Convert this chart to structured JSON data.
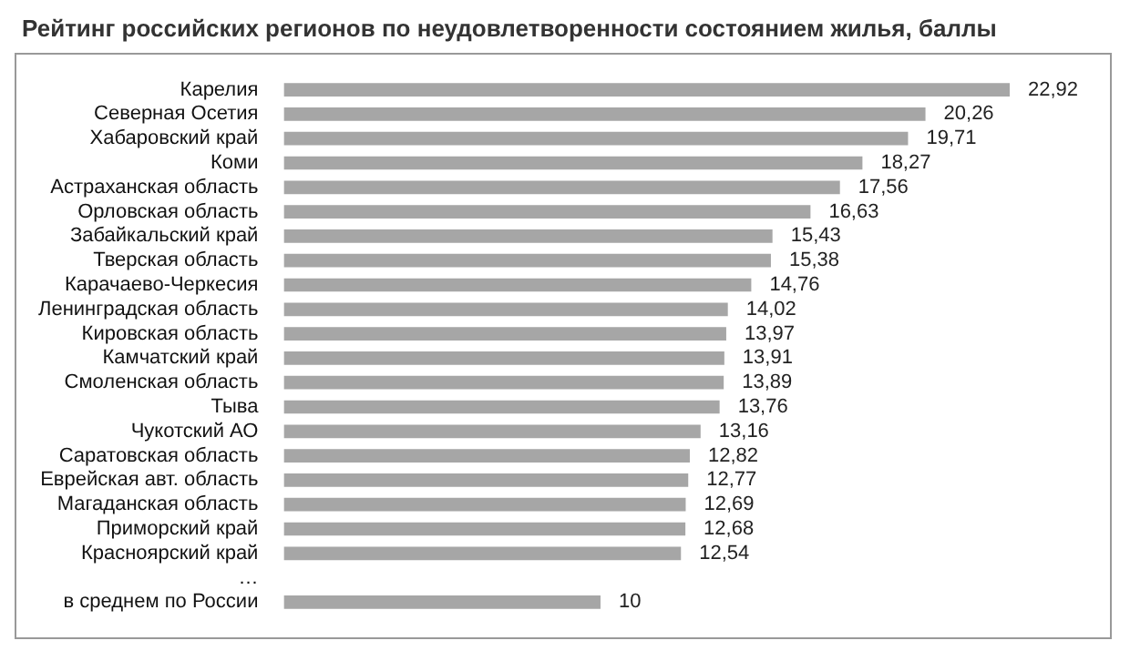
{
  "chart_data": {
    "type": "bar",
    "orientation": "horizontal",
    "title": "Рейтинг российских регионов по неудовлетворенности состоянием жилья, баллы",
    "categories": [
      "Карелия",
      "Северная Осетия",
      "Хабаровский край",
      "Коми",
      "Астраханская область",
      "Орловская область",
      "Забайкальский край",
      "Тверская область",
      "Карачаево-Черкесия",
      "Ленинградская область",
      "Кировская область",
      "Камчатский край",
      "Смоленская область",
      "Тыва",
      "Чукотский АО",
      "Саратовская область",
      "Еврейская авт. область",
      "Магаданская область",
      "Приморский край",
      "Красноярский край",
      "…",
      "в среднем по России"
    ],
    "values": [
      22.92,
      20.26,
      19.71,
      18.27,
      17.56,
      16.63,
      15.43,
      15.38,
      14.76,
      14.02,
      13.97,
      13.91,
      13.89,
      13.76,
      13.16,
      12.82,
      12.77,
      12.69,
      12.68,
      12.54,
      null,
      10
    ],
    "value_labels": [
      "22,92",
      "20,26",
      "19,71",
      "18,27",
      "17,56",
      "16,63",
      "15,43",
      "15,38",
      "14,76",
      "14,02",
      "13,97",
      "13,91",
      "13,89",
      "13,76",
      "13,16",
      "12,82",
      "12,77",
      "12,69",
      "12,68",
      "12,54",
      null,
      "10"
    ],
    "color": "#a6a6a6",
    "legend": false
  }
}
